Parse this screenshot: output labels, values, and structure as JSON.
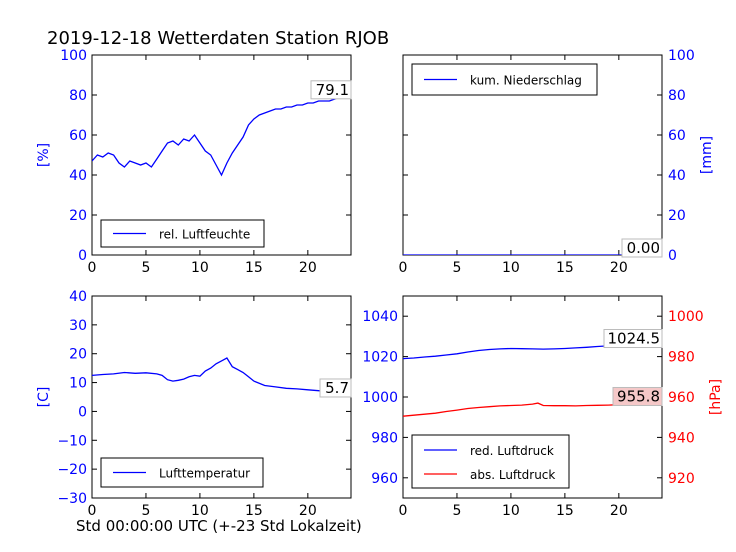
{
  "title": "2019-12-18 Wetterdaten Station RJOB",
  "footer_label": "Std 00:00:00 UTC (+-23 Std Lokalzeit)",
  "colors": {
    "primary": "#0000ff",
    "secondary": "#ff0000",
    "axis": "#000000"
  },
  "chart_data": [
    {
      "type": "line",
      "panel": "top-left",
      "xlabel": "",
      "ylabel": "[%]",
      "xlim": [
        0,
        24
      ],
      "ylim": [
        0,
        100
      ],
      "xticks": [
        0,
        5,
        10,
        15,
        20
      ],
      "yticks": [
        0,
        20,
        40,
        60,
        80,
        100
      ],
      "legend_placement": "lower-left",
      "last_value_label": "79.1",
      "series": [
        {
          "name": "rel. Luftfeuchte",
          "color": "#0000ff",
          "x": [
            0,
            0.5,
            1,
            1.5,
            2,
            2.5,
            3,
            3.5,
            4,
            4.5,
            5,
            5.5,
            6,
            6.5,
            7,
            7.5,
            8,
            8.5,
            9,
            9.5,
            10,
            10.5,
            11,
            11.5,
            12,
            12.5,
            13,
            13.5,
            14,
            14.5,
            15,
            15.5,
            16,
            16.5,
            17,
            17.5,
            18,
            18.5,
            19,
            19.5,
            20,
            20.5,
            21,
            21.5,
            22,
            22.5,
            23,
            23.5,
            24
          ],
          "y": [
            47,
            50,
            49,
            51,
            50,
            46,
            44,
            47,
            46,
            45,
            46,
            44,
            48,
            52,
            56,
            57,
            55,
            58,
            57,
            60,
            56,
            52,
            50,
            45,
            40,
            46,
            51,
            55,
            59,
            65,
            68,
            70,
            71,
            72,
            73,
            73,
            74,
            74,
            75,
            75,
            76,
            76,
            77,
            77,
            77,
            78,
            79,
            79,
            79.1
          ]
        }
      ]
    },
    {
      "type": "line",
      "panel": "top-right",
      "xlabel": "",
      "ylabel": "[mm]",
      "xlim": [
        0,
        24
      ],
      "ylim": [
        0,
        100
      ],
      "xticks": [
        0,
        5,
        10,
        15,
        20
      ],
      "yticks": [
        0,
        20,
        40,
        60,
        80,
        100
      ],
      "y_axis_side": "right",
      "legend_placement": "upper-left",
      "last_value_label": "0.00",
      "series": [
        {
          "name": "kum. Niederschlag",
          "color": "#0000ff",
          "x": [
            0,
            6,
            12,
            18,
            24
          ],
          "y": [
            0,
            0,
            0,
            0,
            0
          ]
        }
      ]
    },
    {
      "type": "line",
      "panel": "bottom-left",
      "xlabel": "Std 00:00:00 UTC (+-23 Std Lokalzeit)",
      "ylabel": "[C]",
      "xlim": [
        0,
        24
      ],
      "ylim": [
        -30,
        40
      ],
      "xticks": [
        0,
        5,
        10,
        15,
        20
      ],
      "yticks": [
        -30,
        -20,
        -10,
        0,
        10,
        20,
        30,
        40
      ],
      "legend_placement": "lower-left",
      "last_value_label": "5.7",
      "series": [
        {
          "name": "Lufttemperatur",
          "color": "#0000ff",
          "x": [
            0,
            1,
            2,
            3,
            4,
            5,
            6,
            6.5,
            7,
            7.5,
            8,
            8.5,
            9,
            9.5,
            10,
            10.5,
            11,
            11.5,
            12,
            12.5,
            13,
            13.5,
            14,
            14.5,
            15,
            16,
            17,
            18,
            19,
            20,
            21,
            22,
            23,
            24
          ],
          "y": [
            12.5,
            12.8,
            13.0,
            13.5,
            13.2,
            13.4,
            13.0,
            12.5,
            11.0,
            10.5,
            10.8,
            11.2,
            12.0,
            12.5,
            12.2,
            14.0,
            15.0,
            16.5,
            17.5,
            18.5,
            15.5,
            14.5,
            13.5,
            12.0,
            10.5,
            9.0,
            8.5,
            8.0,
            7.8,
            7.5,
            7.2,
            6.8,
            6.0,
            5.7
          ]
        }
      ]
    },
    {
      "type": "line",
      "panel": "bottom-right",
      "xlabel": "",
      "ylabel": "",
      "ylabel_right": "[hPa]",
      "xlim": [
        0,
        24
      ],
      "ylim": [
        950,
        1050
      ],
      "ylim_right": [
        910,
        1010
      ],
      "xticks": [
        0,
        5,
        10,
        15,
        20
      ],
      "yticks": [
        960,
        980,
        1000,
        1020,
        1040
      ],
      "yticks_right": [
        920,
        940,
        960,
        980,
        1000
      ],
      "legend_placement": "lower-left",
      "series": [
        {
          "name": "red. Luftdruck",
          "color": "#0000ff",
          "axis": "left",
          "last_value_label": "1024.5",
          "x": [
            0,
            1,
            2,
            3,
            4,
            5,
            6,
            7,
            8,
            9,
            10,
            11,
            12,
            13,
            14,
            15,
            16,
            17,
            18,
            19,
            20,
            21,
            22,
            23,
            24
          ],
          "y": [
            1019.0,
            1019.3,
            1019.8,
            1020.2,
            1020.8,
            1021.4,
            1022.3,
            1023.0,
            1023.5,
            1023.8,
            1024.0,
            1023.9,
            1023.8,
            1023.7,
            1023.8,
            1024.0,
            1024.3,
            1024.6,
            1025.0,
            1025.3,
            1025.5,
            1025.7,
            1025.9,
            1026.0,
            1024.5
          ]
        },
        {
          "name": "abs. Luftdruck",
          "color": "#ff0000",
          "axis": "right",
          "last_value_label": "955.8",
          "x": [
            0,
            1,
            2,
            3,
            4,
            5,
            6,
            7,
            8,
            9,
            10,
            11,
            12,
            12.5,
            13,
            14,
            15,
            16,
            17,
            18,
            19,
            20,
            21,
            22,
            23,
            24
          ],
          "y": [
            950.5,
            951.0,
            951.5,
            952.0,
            952.8,
            953.5,
            954.3,
            954.8,
            955.2,
            955.6,
            955.8,
            956.0,
            956.5,
            957.0,
            955.8,
            955.7,
            955.7,
            955.6,
            955.8,
            955.9,
            956.0,
            956.2,
            956.3,
            956.4,
            956.5,
            955.8
          ]
        }
      ]
    }
  ]
}
